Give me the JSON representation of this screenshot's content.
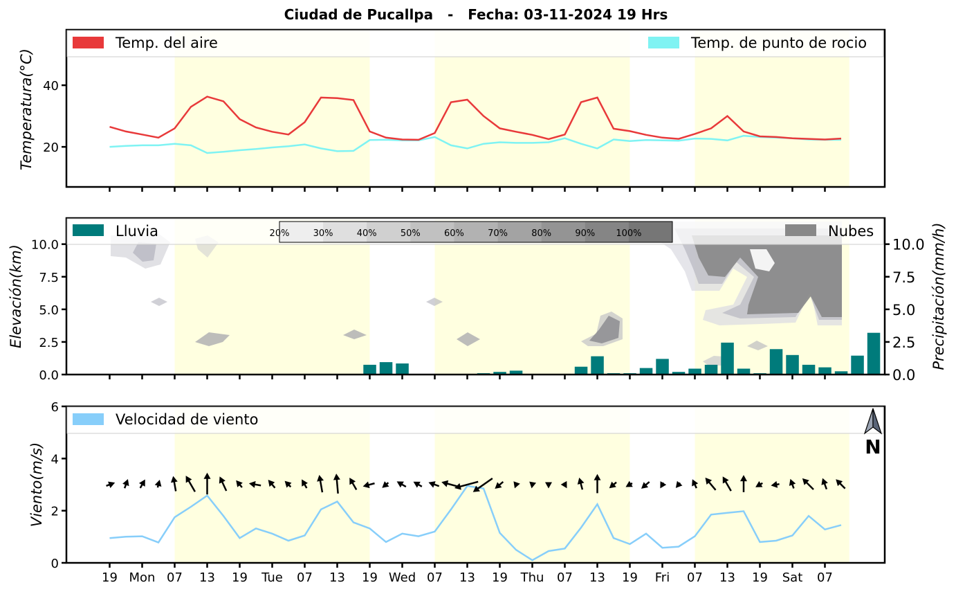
{
  "title": "Ciudad de Pucallpa   -   Fecha: 03-11-2024 19 Hrs",
  "x_tick_labels": [
    "19",
    "Mon",
    "07",
    "13",
    "19",
    "Tue",
    "07",
    "13",
    "19",
    "Wed",
    "07",
    "13",
    "19",
    "Thu",
    "07",
    "13",
    "19",
    "Fri",
    "07",
    "13",
    "19",
    "Sat",
    "07"
  ],
  "north_label": "N",
  "colors": {
    "temp_air": "#e8393a",
    "temp_dew": "#7ff3f3",
    "rain": "#007b7b",
    "clouds": "#888888",
    "wind_speed": "#87cefa",
    "daylight": "#ffffe0"
  },
  "chart_data": [
    {
      "type": "line",
      "name": "temperature",
      "ylabel": "Temperatura(°C)",
      "ylim": [
        7,
        58
      ],
      "yticks": [
        20,
        40
      ],
      "x_step_hours": 3,
      "series": [
        {
          "name": "Temp. del aire",
          "values": [
            26.5,
            25,
            24,
            23,
            26,
            33,
            36.3,
            34.8,
            29,
            26.3,
            24.9,
            24,
            28,
            36,
            35.8,
            35.2,
            25,
            23,
            22.4,
            22.3,
            24.5,
            34.5,
            35.3,
            30,
            26,
            24.9,
            23.9,
            22.5,
            24,
            34.5,
            36,
            25.9,
            25.1,
            23.9,
            23,
            22.6,
            24.2,
            26,
            30,
            25,
            23.4,
            23.2,
            22.8,
            22.6,
            22.4,
            22.7
          ]
        },
        {
          "name": "Temp. de punto de rocio",
          "values": [
            20,
            20.3,
            20.5,
            20.5,
            21,
            20.5,
            18,
            18.4,
            18.9,
            19.3,
            19.8,
            20.2,
            20.8,
            19.5,
            18.6,
            18.7,
            22.2,
            22.3,
            22.1,
            22.1,
            23.2,
            20.5,
            19.5,
            21,
            21.5,
            21.3,
            21.3,
            21.5,
            22.8,
            21,
            19.5,
            22.4,
            21.9,
            22.2,
            22.1,
            22,
            22.7,
            22.6,
            22.1,
            23.6,
            23.2,
            23,
            22.8,
            22.4,
            22.3,
            22.3
          ]
        }
      ]
    },
    {
      "type": "bar",
      "name": "precipitation_clouds",
      "ylabel_left": "Elevación(km)",
      "ylabel_right": "Precipitación(mm/h)",
      "ylim": [
        0,
        12
      ],
      "yticks_left": [
        "0.0",
        "2.5",
        "5.0",
        "7.5",
        "10.0"
      ],
      "yticks_right": [
        "0.0",
        "2.5",
        "5.0",
        "7.5",
        "10.0"
      ],
      "series": [
        {
          "name": "Lluvia",
          "values": [
            0,
            0,
            0,
            0,
            0,
            0,
            0,
            0,
            0,
            0,
            0,
            0,
            0,
            0,
            0.05,
            0,
            0.75,
            0.95,
            0.85,
            0.05,
            0.05,
            0,
            0.05,
            0.1,
            0.2,
            0.3,
            0,
            0,
            0,
            0.6,
            1.4,
            0.1,
            0.1,
            0.5,
            1.2,
            0.2,
            0.45,
            0.75,
            2.45,
            0.45,
            0.1,
            1.95,
            1.5,
            0.75,
            0.55,
            0.25,
            1.45,
            3.2
          ]
        },
        {
          "name": "Nubes",
          "values": []
        }
      ],
      "cloud_scale_labels": [
        "20%",
        "30%",
        "40%",
        "50%",
        "60%",
        "70%",
        "80%",
        "90%",
        "100%"
      ]
    },
    {
      "type": "line",
      "name": "wind",
      "ylabel": "Viento(m/s)",
      "ylim": [
        0,
        6
      ],
      "yticks": [
        0,
        2,
        4,
        6
      ],
      "series": [
        {
          "name": "Velocidad de viento",
          "values": [
            0.95,
            1,
            1.02,
            0.78,
            1.75,
            2.15,
            2.58,
            1.8,
            0.95,
            1.32,
            1.12,
            0.85,
            1.05,
            2.05,
            2.35,
            1.55,
            1.32,
            0.8,
            1.12,
            1.02,
            1.2,
            2.05,
            2.95,
            2.85,
            1.15,
            0.5,
            0.1,
            0.45,
            0.55,
            1.35,
            2.25,
            0.95,
            0.72,
            1.12,
            0.58,
            0.62,
            1.02,
            1.85,
            1.92,
            1.98,
            0.8,
            0.85,
            1.05,
            1.8,
            1.28,
            1.45
          ]
        }
      ],
      "wind_direction_deg": [
        250,
        200,
        210,
        195,
        170,
        150,
        180,
        155,
        140,
        100,
        140,
        135,
        150,
        170,
        175,
        150,
        75,
        50,
        120,
        120,
        110,
        105,
        75,
        55,
        50,
        20,
        10,
        0,
        330,
        165,
        180,
        50,
        60,
        50,
        30,
        40,
        155,
        140,
        150,
        180,
        60,
        80,
        160,
        135,
        160,
        135
      ]
    }
  ]
}
